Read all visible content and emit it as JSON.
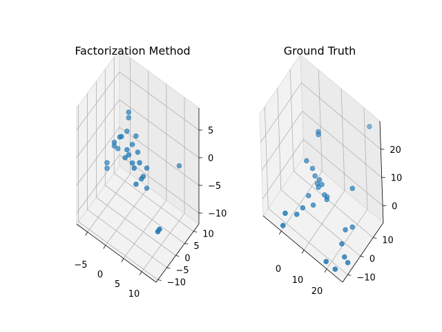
{
  "chart_data": [
    {
      "type": "scatter",
      "title": "Factorization Method",
      "point_color": "#1f77b4",
      "x_ticks": [
        "−5",
        "0",
        "5",
        "10"
      ],
      "y_ticks": [
        "−10",
        "−5",
        "0",
        "5",
        "10"
      ],
      "z_ticks": [
        "−10",
        "−5",
        "0",
        "5"
      ],
      "xlim": [
        -8,
        14
      ],
      "ylim": [
        -11,
        13
      ],
      "zlim": [
        -12,
        9
      ],
      "grid": true,
      "points": [
        {
          "x": -7,
          "y": 4,
          "z": -7
        },
        {
          "x": -7,
          "y": 4,
          "z": -8
        },
        {
          "x": -5,
          "y": 4,
          "z": -3
        },
        {
          "x": -4,
          "y": 4,
          "z": -3
        },
        {
          "x": -4,
          "y": 2,
          "z": -1
        },
        {
          "x": -3,
          "y": 3,
          "z": 0
        },
        {
          "x": -2,
          "y": 2,
          "z": 1
        },
        {
          "x": -1,
          "y": 3,
          "z": 2
        },
        {
          "x": -1,
          "y": 4,
          "z": 4
        },
        {
          "x": -1,
          "y": 4,
          "z": 5
        },
        {
          "x": 0,
          "y": 1,
          "z": 0
        },
        {
          "x": 0,
          "y": 0,
          "z": -1
        },
        {
          "x": 1,
          "y": 2,
          "z": 1
        },
        {
          "x": 1,
          "y": 0,
          "z": 0
        },
        {
          "x": 2,
          "y": 0,
          "z": -1
        },
        {
          "x": 2,
          "y": 2,
          "z": 3
        },
        {
          "x": 3,
          "y": 1,
          "z": 1
        },
        {
          "x": 3,
          "y": -1,
          "z": -1
        },
        {
          "x": 4,
          "y": 0,
          "z": 0
        },
        {
          "x": 4,
          "y": -2,
          "z": -3
        },
        {
          "x": 5,
          "y": 0,
          "z": -2
        },
        {
          "x": 5,
          "y": -1,
          "z": -2
        },
        {
          "x": 6,
          "y": 0,
          "z": 0
        },
        {
          "x": 5,
          "y": 2,
          "z": -5
        },
        {
          "x": 13,
          "y": 4,
          "z": 2
        },
        {
          "x": 12,
          "y": -5,
          "z": -6
        },
        {
          "x": 12,
          "y": -6,
          "z": -6
        }
      ]
    },
    {
      "type": "scatter",
      "title": "Ground Truth",
      "point_color": "#1f77b4",
      "x_ticks": [
        "0",
        "10",
        "20"
      ],
      "y_ticks": [
        "−10",
        "0",
        "10"
      ],
      "z_ticks": [
        "0",
        "10",
        "20"
      ],
      "xlim": [
        -8,
        27
      ],
      "ylim": [
        -14,
        18
      ],
      "zlim": [
        -6,
        30
      ],
      "grid": true,
      "points": [
        {
          "x": 24,
          "y": 15,
          "z": 28
        },
        {
          "x": 5,
          "y": 8,
          "z": 18
        },
        {
          "x": 5,
          "y": 8,
          "z": 17
        },
        {
          "x": 1,
          "y": 5,
          "z": 7
        },
        {
          "x": 3,
          "y": 6,
          "z": 5
        },
        {
          "x": 4,
          "y": 6,
          "z": 3
        },
        {
          "x": 5,
          "y": 6,
          "z": 1
        },
        {
          "x": 6,
          "y": 5,
          "z": 1
        },
        {
          "x": 6,
          "y": 6,
          "z": 3
        },
        {
          "x": 7,
          "y": 6,
          "z": 2
        },
        {
          "x": 8,
          "y": 6,
          "z": -1
        },
        {
          "x": 9,
          "y": 6,
          "z": -2
        },
        {
          "x": 8,
          "y": 8,
          "z": -3
        },
        {
          "x": 2,
          "y": 4,
          "z": -4
        },
        {
          "x": 4,
          "y": 4,
          "z": -6
        },
        {
          "x": 1,
          "y": 1,
          "z": -7
        },
        {
          "x": 0,
          "y": -2,
          "z": -8
        },
        {
          "x": -4,
          "y": -4,
          "z": -9
        },
        {
          "x": -4,
          "y": -6,
          "z": -12
        },
        {
          "x": 20,
          "y": 1,
          "z": -2
        },
        {
          "x": 22,
          "y": 3,
          "z": -1
        },
        {
          "x": 20,
          "y": -2,
          "z": -5
        },
        {
          "x": 21,
          "y": -2,
          "z": -9
        },
        {
          "x": 23,
          "y": -3,
          "z": -9
        },
        {
          "x": 15,
          "y": -6,
          "z": -12
        },
        {
          "x": 19,
          "y": -6,
          "z": -12
        },
        {
          "x": 22,
          "y": 4,
          "z": 12
        }
      ]
    }
  ]
}
